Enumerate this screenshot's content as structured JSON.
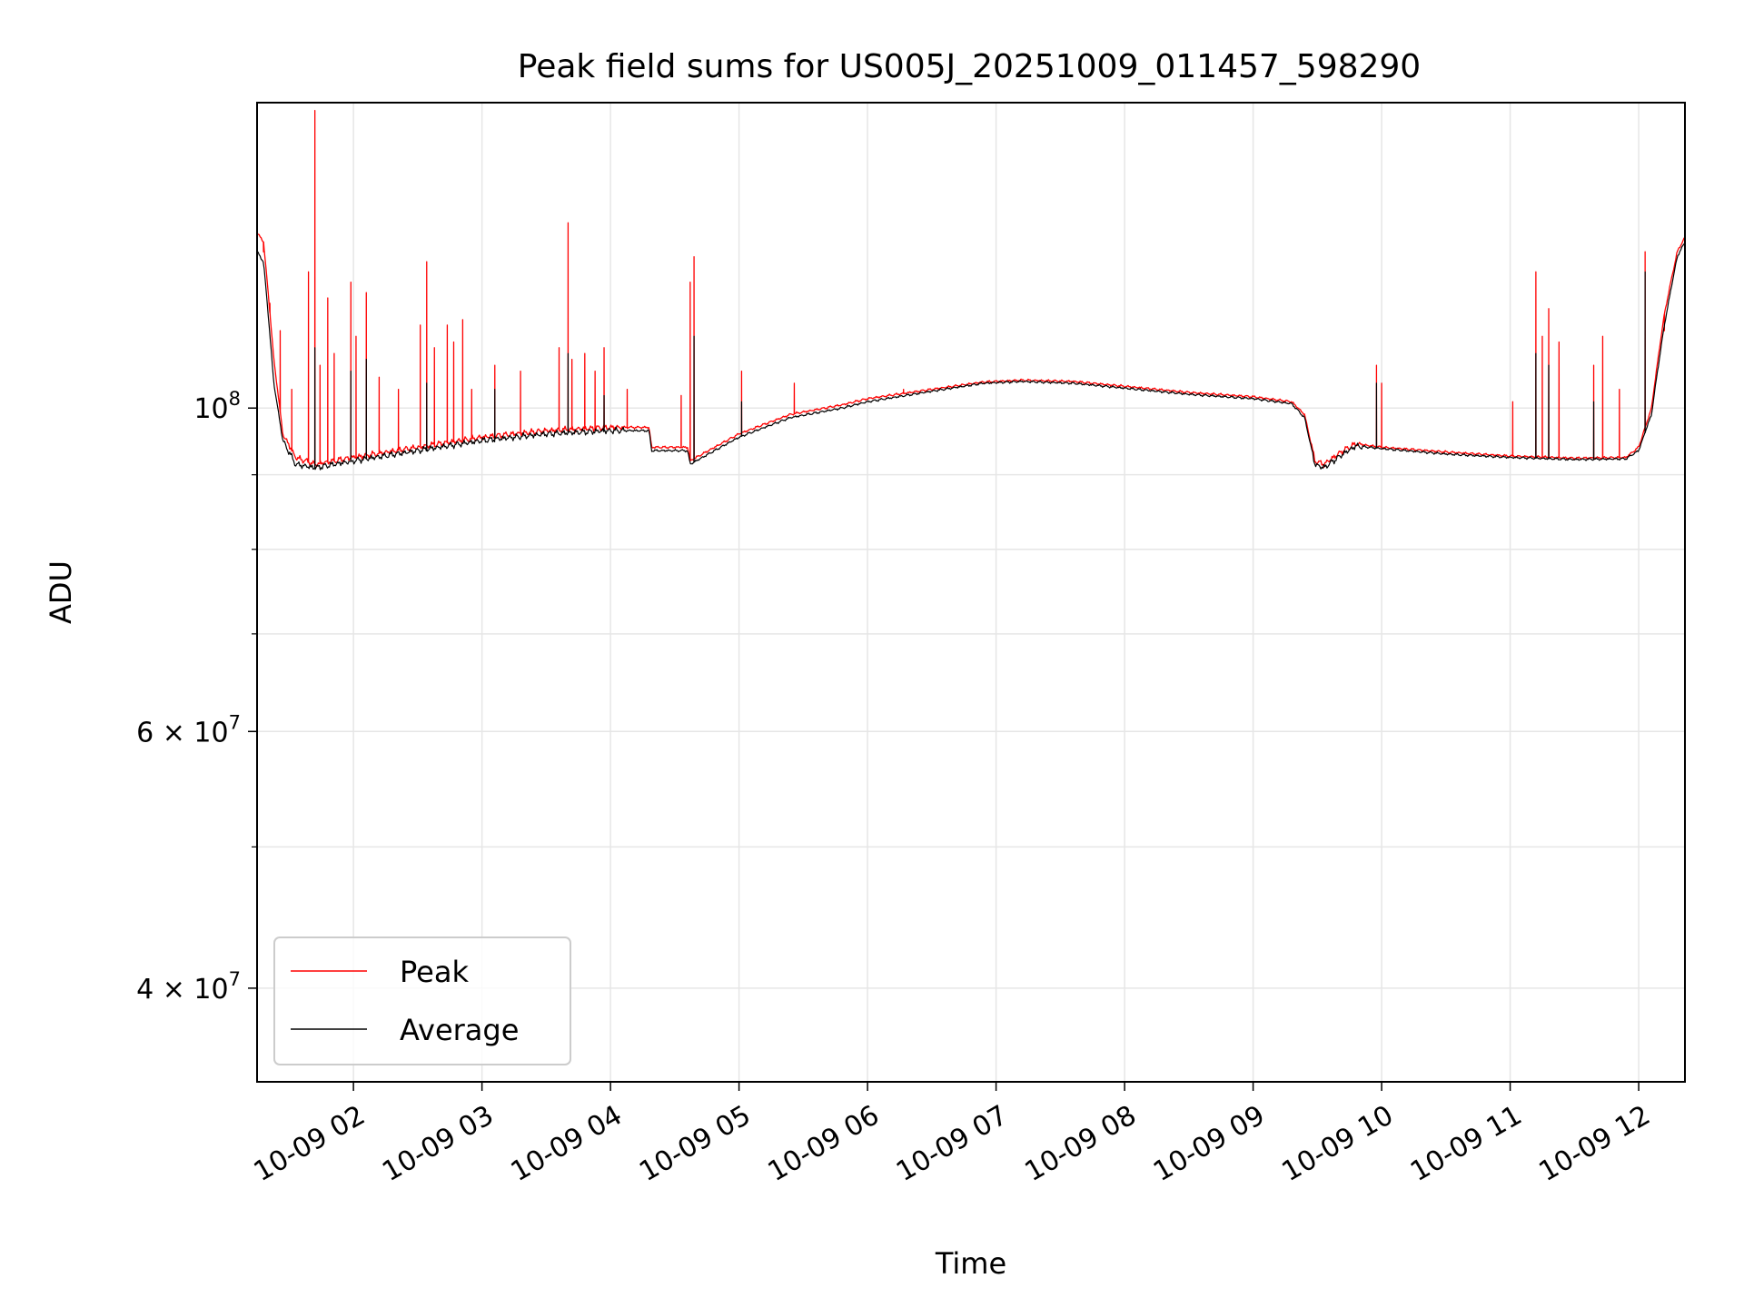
{
  "chart_data": {
    "type": "line",
    "title": "Peak field sums for US005J_20251009_011457_598290",
    "xlabel": "Time",
    "ylabel": "ADU",
    "yscale": "log",
    "xlim_hours": [
      1.25,
      12.36
    ],
    "ylim": [
      34500000,
      162000000
    ],
    "grid": true,
    "legend_position": "lower-left",
    "x_ticks": [
      {
        "hour": 2,
        "label": "10-09 02"
      },
      {
        "hour": 3,
        "label": "10-09 03"
      },
      {
        "hour": 4,
        "label": "10-09 04"
      },
      {
        "hour": 5,
        "label": "10-09 05"
      },
      {
        "hour": 6,
        "label": "10-09 06"
      },
      {
        "hour": 7,
        "label": "10-09 07"
      },
      {
        "hour": 8,
        "label": "10-09 08"
      },
      {
        "hour": 9,
        "label": "10-09 09"
      },
      {
        "hour": 10,
        "label": "10-09 10"
      },
      {
        "hour": 11,
        "label": "10-09 11"
      },
      {
        "hour": 12,
        "label": "10-09 12"
      }
    ],
    "y_major_ticks": [
      {
        "value": 40000000,
        "base": "4 × 10",
        "exp": "7"
      },
      {
        "value": 60000000,
        "base": "6 × 10",
        "exp": "7"
      },
      {
        "value": 100000000,
        "base": "10",
        "exp": "8"
      }
    ],
    "y_minor_gridlines": [
      50000000,
      70000000,
      80000000,
      90000000
    ],
    "series": [
      {
        "name": "Peak",
        "color": "#ff0000",
        "baseline": [
          [
            1.25,
            132000000
          ],
          [
            1.3,
            130000000
          ],
          [
            1.38,
            108000000
          ],
          [
            1.45,
            96000000
          ],
          [
            1.55,
            92500000
          ],
          [
            1.7,
            91500000
          ],
          [
            2.0,
            92500000
          ],
          [
            2.5,
            94000000
          ],
          [
            3.0,
            95500000
          ],
          [
            3.5,
            96500000
          ],
          [
            4.0,
            97000000
          ],
          [
            4.3,
            97000000
          ],
          [
            4.32,
            94000000
          ],
          [
            4.6,
            94000000
          ],
          [
            4.62,
            92000000
          ],
          [
            5.0,
            96000000
          ],
          [
            5.4,
            99000000
          ],
          [
            5.8,
            100500000
          ],
          [
            6.0,
            101500000
          ],
          [
            6.5,
            103000000
          ],
          [
            6.9,
            104200000
          ],
          [
            7.2,
            104500000
          ],
          [
            7.6,
            104300000
          ],
          [
            8.0,
            103500000
          ],
          [
            8.5,
            102500000
          ],
          [
            9.0,
            101800000
          ],
          [
            9.3,
            101000000
          ],
          [
            9.4,
            99000000
          ],
          [
            9.48,
            92000000
          ],
          [
            9.55,
            91500000
          ],
          [
            9.7,
            93500000
          ],
          [
            9.8,
            94500000
          ],
          [
            10.0,
            94000000
          ],
          [
            10.5,
            93300000
          ],
          [
            11.0,
            92700000
          ],
          [
            11.5,
            92400000
          ],
          [
            11.9,
            92500000
          ],
          [
            12.0,
            94000000
          ],
          [
            12.1,
            100000000
          ],
          [
            12.2,
            116000000
          ],
          [
            12.3,
            128000000
          ],
          [
            12.36,
            131000000
          ]
        ],
        "spikes": [
          [
            1.3,
            128000000
          ],
          [
            1.35,
            118000000
          ],
          [
            1.43,
            113000000
          ],
          [
            1.52,
            103000000
          ],
          [
            1.65,
            124000000
          ],
          [
            1.7,
            160000000
          ],
          [
            1.74,
            107000000
          ],
          [
            1.8,
            119000000
          ],
          [
            1.85,
            109000000
          ],
          [
            1.98,
            122000000
          ],
          [
            2.02,
            112000000
          ],
          [
            2.1,
            120000000
          ],
          [
            2.2,
            105000000
          ],
          [
            2.35,
            103000000
          ],
          [
            2.52,
            114000000
          ],
          [
            2.57,
            126000000
          ],
          [
            2.63,
            110000000
          ],
          [
            2.73,
            114000000
          ],
          [
            2.78,
            111000000
          ],
          [
            2.85,
            115000000
          ],
          [
            2.92,
            103000000
          ],
          [
            3.1,
            107000000
          ],
          [
            3.3,
            106000000
          ],
          [
            3.6,
            110000000
          ],
          [
            3.67,
            134000000
          ],
          [
            3.7,
            108000000
          ],
          [
            3.8,
            109000000
          ],
          [
            3.88,
            106000000
          ],
          [
            3.95,
            110000000
          ],
          [
            4.13,
            103000000
          ],
          [
            4.55,
            102000000
          ],
          [
            4.62,
            122000000
          ],
          [
            4.65,
            127000000
          ],
          [
            5.02,
            106000000
          ],
          [
            5.43,
            104000000
          ],
          [
            6.28,
            103000000
          ],
          [
            9.96,
            107000000
          ],
          [
            10.0,
            104000000
          ],
          [
            11.02,
            101000000
          ],
          [
            11.2,
            124000000
          ],
          [
            11.25,
            112000000
          ],
          [
            11.3,
            117000000
          ],
          [
            11.38,
            111000000
          ],
          [
            11.65,
            107000000
          ],
          [
            11.72,
            112000000
          ],
          [
            11.85,
            103000000
          ],
          [
            12.05,
            128000000
          ],
          [
            12.2,
            113000000
          ]
        ]
      },
      {
        "name": "Average",
        "color": "#000000",
        "baseline": [
          [
            1.25,
            128000000
          ],
          [
            1.3,
            126000000
          ],
          [
            1.38,
            104000000
          ],
          [
            1.45,
            95000000
          ],
          [
            1.55,
            91500000
          ],
          [
            1.7,
            91000000
          ],
          [
            2.0,
            92000000
          ],
          [
            2.5,
            93500000
          ],
          [
            3.0,
            95000000
          ],
          [
            3.5,
            96000000
          ],
          [
            4.0,
            96500000
          ],
          [
            4.3,
            96500000
          ],
          [
            4.32,
            93500000
          ],
          [
            4.6,
            93500000
          ],
          [
            4.62,
            91500000
          ],
          [
            5.0,
            95500000
          ],
          [
            5.4,
            98500000
          ],
          [
            5.8,
            100000000
          ],
          [
            6.0,
            101000000
          ],
          [
            6.5,
            102700000
          ],
          [
            6.9,
            104000000
          ],
          [
            7.2,
            104300000
          ],
          [
            7.6,
            104000000
          ],
          [
            8.0,
            103200000
          ],
          [
            8.5,
            102200000
          ],
          [
            9.0,
            101500000
          ],
          [
            9.3,
            100700000
          ],
          [
            9.4,
            98500000
          ],
          [
            9.48,
            91500000
          ],
          [
            9.55,
            91000000
          ],
          [
            9.7,
            93000000
          ],
          [
            9.8,
            94200000
          ],
          [
            10.0,
            93800000
          ],
          [
            10.5,
            93000000
          ],
          [
            11.0,
            92500000
          ],
          [
            11.5,
            92200000
          ],
          [
            11.9,
            92300000
          ],
          [
            12.0,
            93500000
          ],
          [
            12.1,
            99000000
          ],
          [
            12.2,
            114000000
          ],
          [
            12.3,
            127000000
          ],
          [
            12.36,
            130000000
          ]
        ],
        "spikes": [
          [
            1.7,
            110000000
          ],
          [
            1.98,
            106000000
          ],
          [
            2.1,
            108000000
          ],
          [
            2.57,
            104000000
          ],
          [
            3.1,
            103000000
          ],
          [
            3.67,
            109000000
          ],
          [
            3.95,
            102000000
          ],
          [
            4.65,
            112000000
          ],
          [
            5.02,
            101000000
          ],
          [
            9.96,
            104000000
          ],
          [
            11.2,
            109000000
          ],
          [
            11.3,
            107000000
          ],
          [
            11.65,
            101000000
          ],
          [
            12.05,
            124000000
          ]
        ]
      }
    ]
  }
}
